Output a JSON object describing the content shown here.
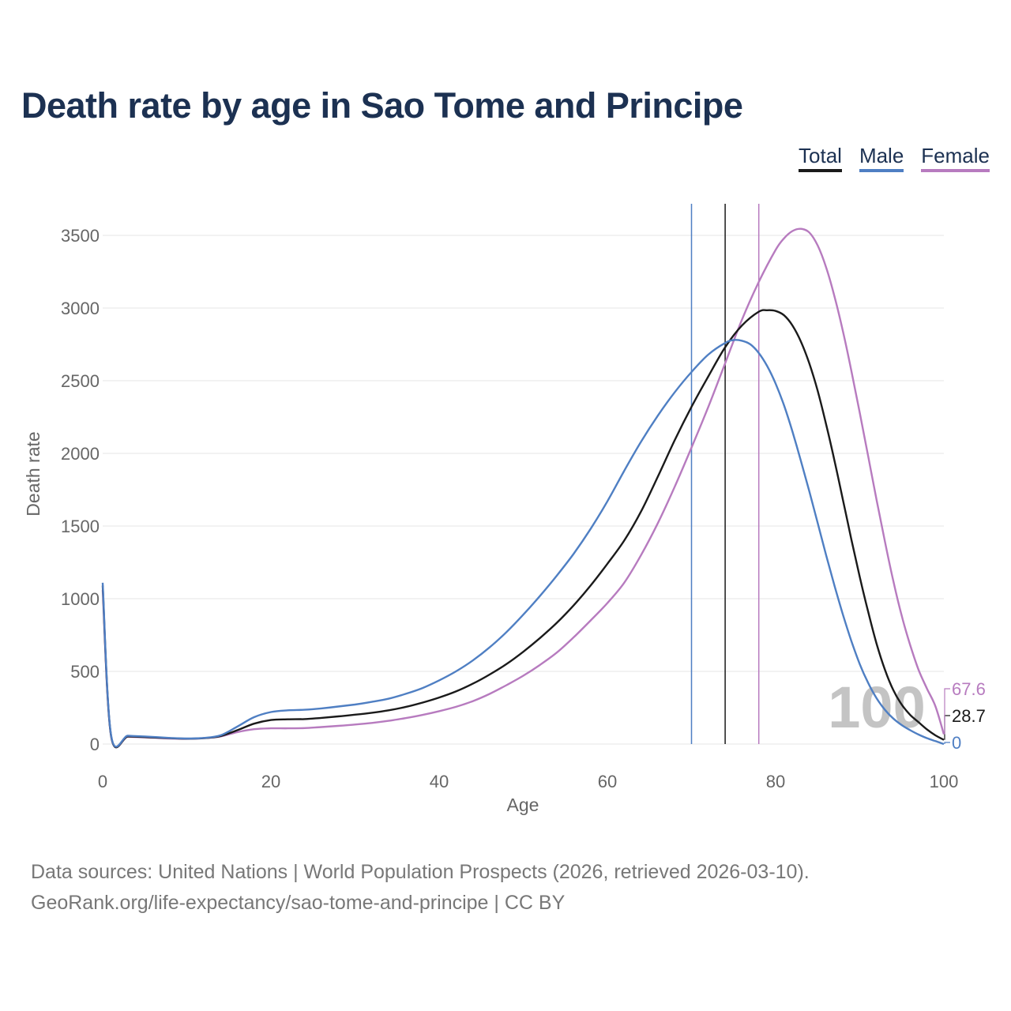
{
  "chart_data": {
    "type": "line",
    "title": "Death rate by age in Sao Tome and Principe",
    "xlabel": "Age",
    "ylabel": "Death rate",
    "xlim": [
      0,
      100
    ],
    "ylim": [
      0,
      3700
    ],
    "x_ticks": [
      0,
      20,
      40,
      60,
      80,
      100
    ],
    "y_ticks": [
      0,
      500,
      1000,
      1500,
      2000,
      2500,
      3000,
      3500
    ],
    "grid": true,
    "legend_position": "top-right",
    "current_age_label": "100",
    "series": [
      {
        "name": "Total",
        "color": "#1a1a1a",
        "reference_age": 74,
        "end_label": "28.7",
        "points": [
          [
            0,
            1090
          ],
          [
            1,
            55
          ],
          [
            3,
            52
          ],
          [
            5,
            48
          ],
          [
            8,
            40
          ],
          [
            10,
            37
          ],
          [
            12,
            40
          ],
          [
            14,
            55
          ],
          [
            16,
            95
          ],
          [
            18,
            140
          ],
          [
            20,
            165
          ],
          [
            22,
            170
          ],
          [
            24,
            172
          ],
          [
            26,
            180
          ],
          [
            28,
            190
          ],
          [
            30,
            202
          ],
          [
            32,
            215
          ],
          [
            34,
            232
          ],
          [
            36,
            255
          ],
          [
            38,
            285
          ],
          [
            40,
            320
          ],
          [
            42,
            362
          ],
          [
            44,
            415
          ],
          [
            46,
            478
          ],
          [
            48,
            550
          ],
          [
            50,
            635
          ],
          [
            52,
            730
          ],
          [
            54,
            835
          ],
          [
            56,
            955
          ],
          [
            58,
            1090
          ],
          [
            60,
            1240
          ],
          [
            62,
            1400
          ],
          [
            64,
            1600
          ],
          [
            66,
            1840
          ],
          [
            68,
            2090
          ],
          [
            70,
            2320
          ],
          [
            72,
            2530
          ],
          [
            74,
            2730
          ],
          [
            76,
            2880
          ],
          [
            78,
            2975
          ],
          [
            79,
            2985
          ],
          [
            80,
            2980
          ],
          [
            81,
            2950
          ],
          [
            82,
            2880
          ],
          [
            83,
            2770
          ],
          [
            84,
            2620
          ],
          [
            85,
            2430
          ],
          [
            86,
            2200
          ],
          [
            87,
            1950
          ],
          [
            88,
            1680
          ],
          [
            89,
            1410
          ],
          [
            90,
            1150
          ],
          [
            91,
            910
          ],
          [
            92,
            690
          ],
          [
            93,
            510
          ],
          [
            94,
            370
          ],
          [
            95,
            270
          ],
          [
            96,
            200
          ],
          [
            97,
            150
          ],
          [
            98,
            100
          ],
          [
            99,
            60
          ],
          [
            100,
            28.7
          ]
        ]
      },
      {
        "name": "Male",
        "color": "#4f7fc3",
        "reference_age": 70,
        "end_label": "0",
        "points": [
          [
            0,
            1110
          ],
          [
            1,
            60
          ],
          [
            3,
            57
          ],
          [
            5,
            52
          ],
          [
            8,
            42
          ],
          [
            10,
            38
          ],
          [
            12,
            42
          ],
          [
            14,
            60
          ],
          [
            16,
            120
          ],
          [
            18,
            185
          ],
          [
            20,
            220
          ],
          [
            22,
            232
          ],
          [
            24,
            236
          ],
          [
            26,
            245
          ],
          [
            28,
            258
          ],
          [
            30,
            272
          ],
          [
            32,
            290
          ],
          [
            34,
            312
          ],
          [
            36,
            345
          ],
          [
            38,
            385
          ],
          [
            40,
            438
          ],
          [
            42,
            500
          ],
          [
            44,
            575
          ],
          [
            46,
            665
          ],
          [
            48,
            770
          ],
          [
            50,
            890
          ],
          [
            52,
            1020
          ],
          [
            54,
            1160
          ],
          [
            56,
            1310
          ],
          [
            58,
            1480
          ],
          [
            60,
            1670
          ],
          [
            62,
            1880
          ],
          [
            64,
            2080
          ],
          [
            66,
            2260
          ],
          [
            68,
            2420
          ],
          [
            70,
            2560
          ],
          [
            72,
            2680
          ],
          [
            74,
            2760
          ],
          [
            75,
            2780
          ],
          [
            76,
            2775
          ],
          [
            77,
            2750
          ],
          [
            78,
            2690
          ],
          [
            79,
            2600
          ],
          [
            80,
            2480
          ],
          [
            81,
            2330
          ],
          [
            82,
            2150
          ],
          [
            83,
            1950
          ],
          [
            84,
            1740
          ],
          [
            85,
            1520
          ],
          [
            86,
            1300
          ],
          [
            87,
            1090
          ],
          [
            88,
            890
          ],
          [
            89,
            710
          ],
          [
            90,
            550
          ],
          [
            91,
            420
          ],
          [
            92,
            315
          ],
          [
            93,
            235
          ],
          [
            94,
            175
          ],
          [
            95,
            130
          ],
          [
            96,
            95
          ],
          [
            97,
            65
          ],
          [
            98,
            40
          ],
          [
            99,
            20
          ],
          [
            100,
            0
          ]
        ]
      },
      {
        "name": "Female",
        "color": "#b77bbf",
        "reference_age": 78,
        "end_label": "67.6",
        "points": [
          [
            0,
            1060
          ],
          [
            1,
            52
          ],
          [
            3,
            50
          ],
          [
            5,
            46
          ],
          [
            8,
            38
          ],
          [
            10,
            36
          ],
          [
            12,
            40
          ],
          [
            14,
            52
          ],
          [
            16,
            82
          ],
          [
            18,
            102
          ],
          [
            20,
            108
          ],
          [
            22,
            108
          ],
          [
            24,
            110
          ],
          [
            26,
            117
          ],
          [
            28,
            125
          ],
          [
            30,
            134
          ],
          [
            32,
            145
          ],
          [
            34,
            160
          ],
          [
            36,
            178
          ],
          [
            38,
            200
          ],
          [
            40,
            226
          ],
          [
            42,
            256
          ],
          [
            44,
            295
          ],
          [
            46,
            345
          ],
          [
            48,
            405
          ],
          [
            50,
            470
          ],
          [
            52,
            545
          ],
          [
            54,
            630
          ],
          [
            56,
            735
          ],
          [
            58,
            850
          ],
          [
            60,
            970
          ],
          [
            62,
            1110
          ],
          [
            64,
            1300
          ],
          [
            66,
            1520
          ],
          [
            68,
            1770
          ],
          [
            70,
            2040
          ],
          [
            72,
            2320
          ],
          [
            74,
            2620
          ],
          [
            76,
            2920
          ],
          [
            78,
            3180
          ],
          [
            80,
            3400
          ],
          [
            81,
            3480
          ],
          [
            82,
            3530
          ],
          [
            83,
            3545
          ],
          [
            84,
            3520
          ],
          [
            85,
            3430
          ],
          [
            86,
            3280
          ],
          [
            87,
            3080
          ],
          [
            88,
            2840
          ],
          [
            89,
            2570
          ],
          [
            90,
            2280
          ],
          [
            91,
            1980
          ],
          [
            92,
            1680
          ],
          [
            93,
            1390
          ],
          [
            94,
            1120
          ],
          [
            95,
            880
          ],
          [
            96,
            680
          ],
          [
            97,
            510
          ],
          [
            98,
            380
          ],
          [
            99,
            260
          ],
          [
            100,
            67.6
          ]
        ]
      }
    ]
  },
  "footer": {
    "source_line": "Data sources: United Nations | World Population Prospects (2026, retrieved 2026-03-10).",
    "link_line": "GeoRank.org/life-expectancy/sao-tome-and-principe | CC BY"
  }
}
